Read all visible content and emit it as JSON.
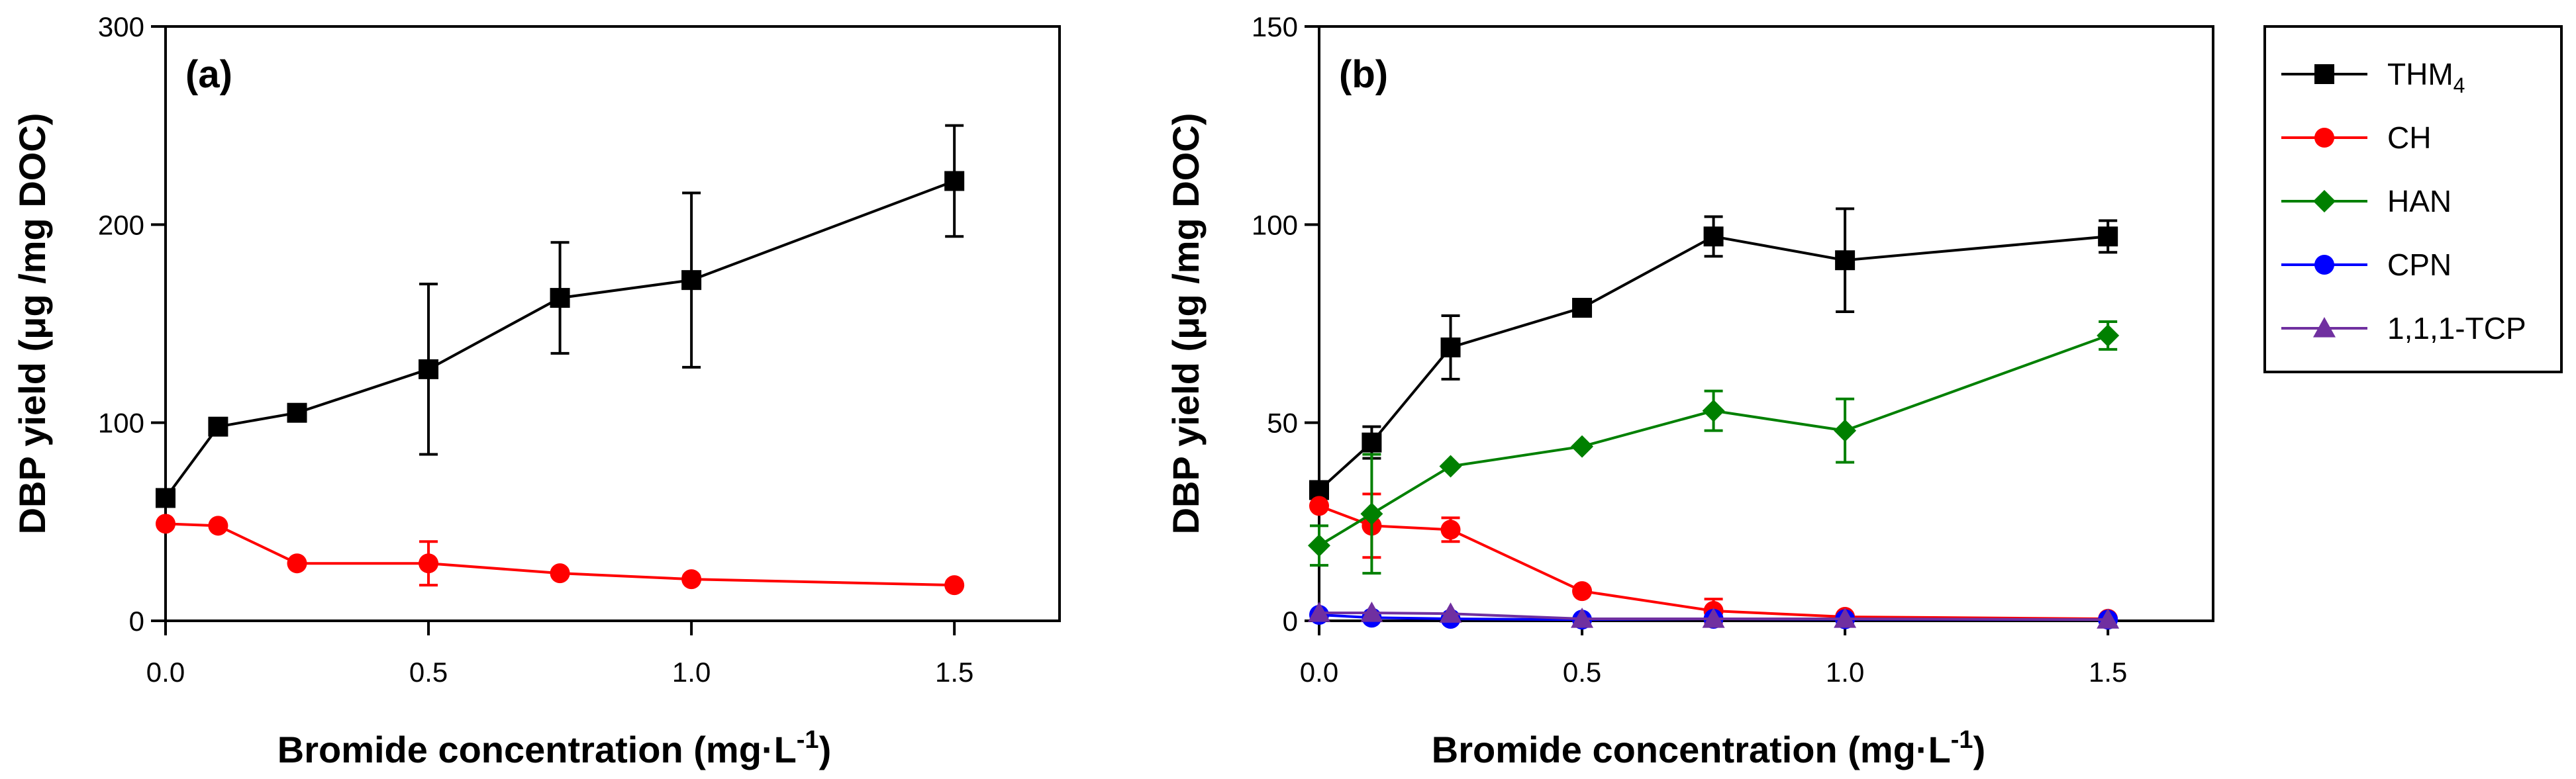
{
  "figure": {
    "legend": [
      {
        "name": "THM",
        "sub": "4",
        "color": "#000000",
        "marker": "square"
      },
      {
        "name": "CH",
        "sub": "",
        "color": "#ff0000",
        "marker": "circle"
      },
      {
        "name": "HAN",
        "sub": "",
        "color": "#008000",
        "marker": "diamond"
      },
      {
        "name": "CPN",
        "sub": "",
        "color": "#0000ff",
        "marker": "circle"
      },
      {
        "name": "1,1,1-TCP",
        "sub": "",
        "color": "#7030a0",
        "marker": "triangle"
      }
    ]
  },
  "chart_data": [
    {
      "type": "line",
      "panel_label": "(a)",
      "xlabel": "Bromide concentration (mg·L",
      "xlabel_sup": "-1",
      "xlabel_end": ")",
      "ylabel": "DBP yield (μg /mg DOC)",
      "xlim": [
        0,
        1.7
      ],
      "ylim": [
        0,
        300
      ],
      "xticks": [
        0.0,
        0.5,
        1.0,
        1.5
      ],
      "xtick_labels": [
        "0.0",
        "0.5",
        "1.0",
        "1.5"
      ],
      "yticks": [
        0,
        100,
        200,
        300
      ],
      "ytick_labels": [
        "0",
        "100",
        "200",
        "300"
      ],
      "grid": false,
      "x": [
        0,
        0.1,
        0.25,
        0.5,
        0.75,
        1.0,
        1.5
      ],
      "series": [
        {
          "key": "thm4",
          "color": "#000000",
          "marker": "square",
          "values": [
            62,
            98,
            105,
            127,
            163,
            172,
            222
          ],
          "errors": [
            0,
            2,
            3,
            43,
            28,
            44,
            28
          ]
        },
        {
          "key": "ch",
          "color": "#ff0000",
          "marker": "circle",
          "values": [
            49,
            48,
            29,
            29,
            24,
            21,
            18
          ],
          "errors": [
            0,
            0,
            0,
            11,
            0,
            0,
            0
          ]
        }
      ]
    },
    {
      "type": "line",
      "panel_label": "(b)",
      "xlabel": "Bromide concentration (mg·L",
      "xlabel_sup": "-1",
      "xlabel_end": ")",
      "ylabel": "DBP yield (μg /mg DOC)",
      "xlim": [
        0,
        1.7
      ],
      "ylim": [
        0,
        150
      ],
      "xticks": [
        0.0,
        0.5,
        1.0,
        1.5
      ],
      "xtick_labels": [
        "0.0",
        "0.5",
        "1.0",
        "1.5"
      ],
      "yticks": [
        0,
        50,
        100,
        150
      ],
      "ytick_labels": [
        "0",
        "50",
        "100",
        "150"
      ],
      "grid": false,
      "legend_position": "outside-right",
      "x": [
        0,
        0.1,
        0.25,
        0.5,
        0.75,
        1.0,
        1.5
      ],
      "series": [
        {
          "key": "thm4",
          "color": "#000000",
          "marker": "square",
          "values": [
            33,
            45,
            69,
            79,
            97,
            91,
            97
          ],
          "errors": [
            0,
            4,
            8,
            1,
            5,
            13,
            4
          ]
        },
        {
          "key": "ch",
          "color": "#ff0000",
          "marker": "circle",
          "values": [
            29,
            24,
            23,
            7.5,
            2.5,
            1,
            0.5
          ],
          "errors": [
            0,
            8,
            3,
            0,
            3,
            0,
            0
          ]
        },
        {
          "key": "han",
          "color": "#008000",
          "marker": "diamond",
          "values": [
            19,
            27,
            39,
            44,
            53,
            48,
            72
          ],
          "errors": [
            5,
            15,
            0,
            0,
            5,
            8,
            3.5
          ]
        },
        {
          "key": "cpn",
          "color": "#0000ff",
          "marker": "circle",
          "values": [
            1.5,
            0.8,
            0.5,
            0.3,
            0.5,
            0.4,
            0.3
          ],
          "errors": [
            0,
            0,
            0,
            0,
            0,
            0,
            0
          ]
        },
        {
          "key": "tcp",
          "color": "#7030a0",
          "marker": "triangle",
          "values": [
            2,
            2,
            1.8,
            0.5,
            0.5,
            0.5,
            0.3
          ],
          "errors": [
            0,
            0,
            0,
            0,
            0,
            0,
            0
          ]
        }
      ]
    }
  ]
}
